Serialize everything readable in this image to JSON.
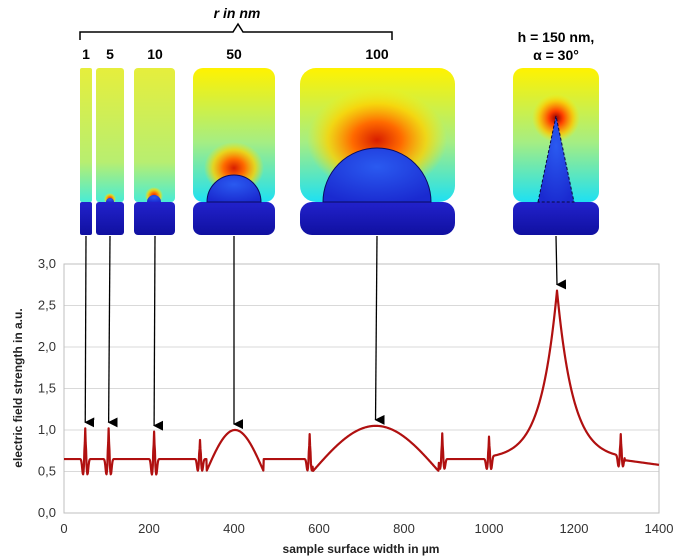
{
  "chart_data": {
    "type": "line",
    "xlabel": "sample surface width in µm",
    "ylabel": "electric field strength in a.u.",
    "xlim": [
      0,
      1400
    ],
    "ylim": [
      0,
      3
    ],
    "x_ticks": [
      "0",
      "200",
      "400",
      "600",
      "800",
      "1000",
      "1200",
      "1400"
    ],
    "y_ticks": [
      "0,0",
      "0,5",
      "1,0",
      "1,5",
      "2,0",
      "2,5",
      "3,0"
    ],
    "grid": "horizontal",
    "line_color": "#b01010",
    "baseline": 0.65,
    "right_edge_value": 0.58,
    "spikes": [
      {
        "x": 50,
        "peak": 1.02,
        "min": 0.45
      },
      {
        "x": 105,
        "peak": 1.02,
        "min": 0.45
      },
      {
        "x": 212,
        "peak": 0.98,
        "min": 0.45
      },
      {
        "x": 320,
        "peak": 0.88,
        "min": 0.5
      },
      {
        "x": 578,
        "peak": 0.95,
        "min": 0.5
      },
      {
        "x": 890,
        "peak": 0.96,
        "min": 0.52
      },
      {
        "x": 1000,
        "peak": 0.92,
        "min": 0.52
      },
      {
        "x": 1310,
        "peak": 0.95,
        "min": 0.55
      }
    ],
    "bumps": [
      {
        "from": 335,
        "to": 470,
        "peak": 1.0
      },
      {
        "from": 585,
        "to": 882,
        "peak": 1.05
      }
    ],
    "tip_peak": {
      "x": 1160,
      "peak": 2.68
    },
    "annotations": {
      "group_title": "r in nm",
      "radii": [
        "1",
        "5",
        "10",
        "50",
        "100"
      ],
      "tip_label_line1": "h = 150 nm,",
      "tip_label_line2": "α = 30°"
    }
  },
  "colors": {
    "substrate": "#1a1ab4",
    "particle": "#2a4ae6",
    "field_high": "#d81e00",
    "field_mid": "#ffcc00",
    "field_low": "#c8f05a",
    "field_near_surface": "#2ee0f0"
  }
}
